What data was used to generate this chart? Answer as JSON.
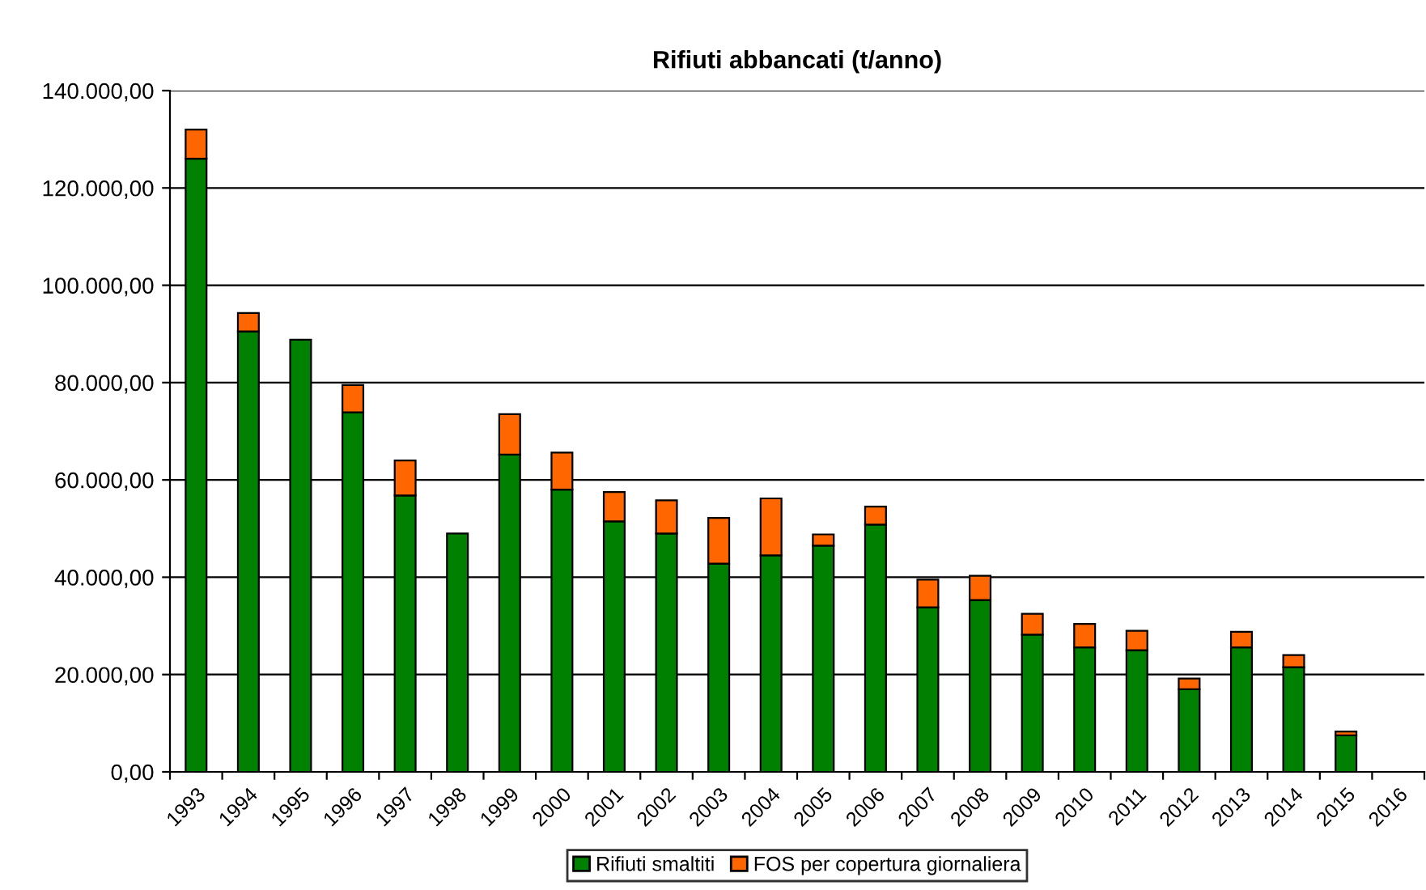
{
  "chart_data": {
    "type": "bar",
    "title": "Rifiuti abbancati (t/anno)",
    "stacked": true,
    "categories": [
      "1993",
      "1994",
      "1995",
      "1996",
      "1997",
      "1998",
      "1999",
      "2000",
      "2001",
      "2002",
      "2003",
      "2004",
      "2005",
      "2006",
      "2007",
      "2008",
      "2009",
      "2010",
      "2011",
      "2012",
      "2013",
      "2014",
      "2015",
      "2016"
    ],
    "series": [
      {
        "name": "Rifiuti smaltiti",
        "color": "#008000",
        "values": [
          126000,
          90500,
          88800,
          73900,
          56800,
          49000,
          65200,
          58000,
          51500,
          49000,
          42800,
          44500,
          46500,
          50800,
          33800,
          35300,
          28200,
          25600,
          25000,
          17000,
          25600,
          21500,
          7500,
          null
        ]
      },
      {
        "name": "FOS per copertura giornaliera",
        "color": "#ff6600",
        "values": [
          6000,
          3800,
          0,
          5600,
          7200,
          0,
          8300,
          7600,
          6000,
          6800,
          9400,
          11700,
          2300,
          3700,
          5700,
          5000,
          4300,
          4800,
          4000,
          2200,
          3200,
          2500,
          800,
          null
        ]
      }
    ],
    "ylim": [
      0,
      140000
    ],
    "yticks": [
      {
        "value": 0,
        "label": "0,00"
      },
      {
        "value": 20000,
        "label": "20.000,00"
      },
      {
        "value": 40000,
        "label": "40.000,00"
      },
      {
        "value": 60000,
        "label": "60.000,00"
      },
      {
        "value": 80000,
        "label": "80.000,00"
      },
      {
        "value": 100000,
        "label": "100.000,00"
      },
      {
        "value": 120000,
        "label": "120.000,00"
      },
      {
        "value": 140000,
        "label": "140.000,00"
      }
    ],
    "grid": "y",
    "legend": "bottom"
  }
}
